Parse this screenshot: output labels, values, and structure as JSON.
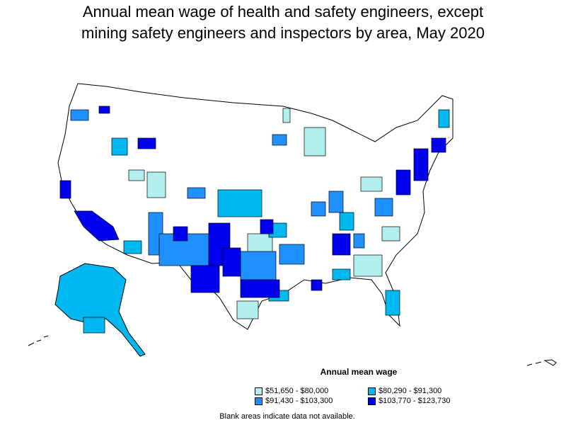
{
  "title": {
    "line1": "Annual mean wage of health and safety engineers, except",
    "line2": "mining safety engineers and inspectors by area, May 2020"
  },
  "legend": {
    "title": "Annual mean wage",
    "items": [
      {
        "label": "$51,650 - $80,000",
        "color": "#b3eeee"
      },
      {
        "label": "$80,290 - $91,300",
        "color": "#00b8f0"
      },
      {
        "label": "$91,430 - $103,300",
        "color": "#1e90ff"
      },
      {
        "label": "$103,770 - $123,730",
        "color": "#0000ee"
      }
    ]
  },
  "note": "Blank areas indicate data not available."
}
